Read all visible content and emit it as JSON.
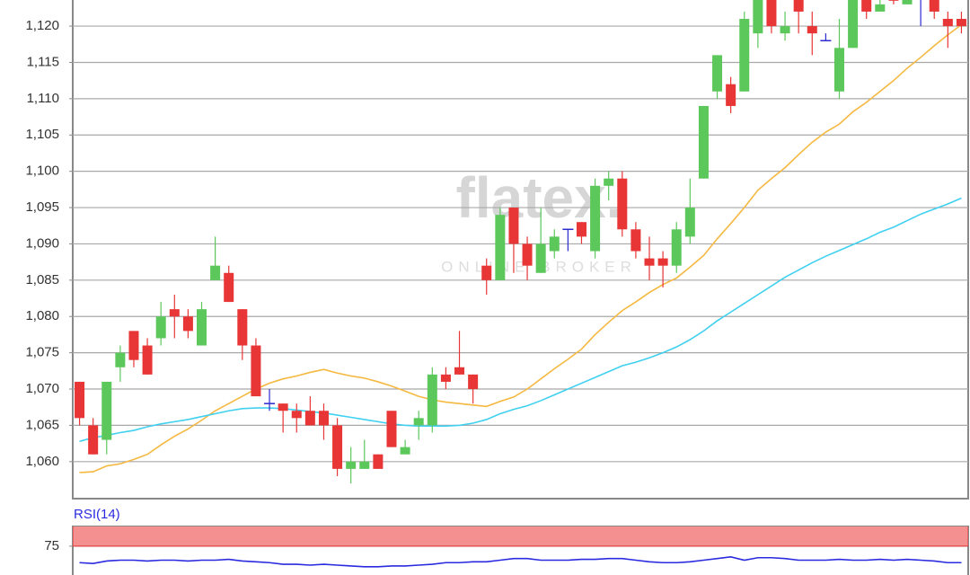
{
  "chart_data": [
    {
      "type": "candlestick",
      "watermark": [
        "flatex.",
        "ONLINE BROKER"
      ],
      "open": [
        1071,
        1065,
        1063,
        1073,
        1078,
        1076,
        1077,
        1081,
        1080,
        1076,
        1085,
        1086,
        1081,
        1076,
        1068,
        1068,
        1067,
        1067,
        1067,
        1065,
        1059,
        1059,
        1061,
        1067,
        1061,
        1065,
        1065,
        1072,
        1073,
        1072,
        1087,
        1085,
        1095,
        1090,
        1086,
        1089,
        1092,
        1093,
        1089,
        1098,
        1099,
        1092,
        1088,
        1088,
        1087,
        1091,
        1099,
        1111,
        1112,
        1111,
        1119,
        1124,
        1119,
        1124,
        1120,
        1118,
        1111,
        1117,
        1124,
        1122,
        1124,
        1123,
        1124,
        1124,
        1121,
        1121
      ],
      "high": [
        1071,
        1066,
        1071,
        1076,
        1078,
        1077,
        1082,
        1083,
        1081,
        1082,
        1091,
        1087,
        1081,
        1077,
        1070,
        1068,
        1068,
        1069,
        1068,
        1066,
        1062,
        1063,
        1061,
        1067,
        1063,
        1067,
        1073,
        1073,
        1078,
        1072,
        1088,
        1095,
        1095,
        1091,
        1095,
        1092,
        1092,
        1093,
        1099,
        1100,
        1100,
        1093,
        1091,
        1089,
        1093,
        1099,
        1109,
        1116,
        1113,
        1122,
        1124,
        1124,
        1122,
        1124,
        1122,
        1119,
        1121,
        1124,
        1124,
        1124,
        1124,
        1124,
        1124,
        1124,
        1122,
        1122
      ],
      "low": [
        1065,
        1061,
        1061,
        1071,
        1073,
        1072,
        1076,
        1077,
        1077,
        1076,
        1085,
        1082,
        1074,
        1069,
        1067,
        1064,
        1064,
        1065,
        1063,
        1058,
        1057,
        1059,
        1059,
        1062,
        1061,
        1063,
        1064,
        1070,
        1072,
        1068,
        1083,
        1085,
        1086,
        1085,
        1086,
        1088,
        1089,
        1090,
        1088,
        1096,
        1091,
        1088,
        1085,
        1084,
        1086,
        1090,
        1099,
        1110,
        1108,
        1111,
        1117,
        1119,
        1118,
        1119,
        1116,
        1118,
        1110,
        1117,
        1121,
        1122,
        1123,
        1123,
        1120,
        1121,
        1117,
        1119
      ],
      "close": [
        1066,
        1061,
        1071,
        1075,
        1074,
        1072,
        1080,
        1080,
        1078,
        1081,
        1087,
        1082,
        1076,
        1069,
        1068,
        1067,
        1066,
        1065,
        1065,
        1059,
        1060,
        1060,
        1059,
        1062,
        1062,
        1066,
        1072,
        1071,
        1072,
        1070,
        1085,
        1094,
        1090,
        1087,
        1090,
        1091,
        1092,
        1091,
        1098,
        1099,
        1092,
        1089,
        1087,
        1087,
        1092,
        1095,
        1109,
        1116,
        1109,
        1121,
        1124,
        1120,
        1120,
        1122,
        1119,
        1118,
        1117,
        1124,
        1122,
        1123,
        1123.5,
        1124,
        1124,
        1122,
        1120,
        1120
      ],
      "colors": {
        "up": "#5cc85c",
        "down": "#e83535",
        "doji": "#2a2ad0"
      },
      "overlays": [
        {
          "color": "#f5b840",
          "values": [
            1058.5,
            1058.6,
            1059.4,
            1059.7,
            1060.3,
            1061,
            1062.3,
            1063.5,
            1064.5,
            1065.7,
            1067,
            1068,
            1069,
            1070,
            1070.8,
            1071.4,
            1071.8,
            1072.3,
            1072.7,
            1072.2,
            1071.8,
            1071.5,
            1071,
            1070.4,
            1069.7,
            1069,
            1068.5,
            1068.2,
            1068,
            1067.8,
            1067.6,
            1068.3,
            1068.9,
            1070,
            1071.4,
            1072.8,
            1074.1,
            1075.5,
            1077.5,
            1079.2,
            1080.8,
            1082,
            1083.3,
            1084.4,
            1085.3,
            1086.8,
            1088.4,
            1090.7,
            1092.8,
            1095,
            1097.4,
            1099,
            1100.5,
            1102.3,
            1104,
            1105.4,
            1106.5,
            1108.2,
            1109.5,
            1111,
            1112.5,
            1114.2,
            1115.7,
            1117.3,
            1118.8,
            1120.2
          ]
        },
        {
          "color": "#40d0f0",
          "values": [
            1062.8,
            1063.3,
            1063.6,
            1064,
            1064.3,
            1064.8,
            1065.2,
            1065.5,
            1065.8,
            1066.2,
            1066.6,
            1067,
            1067.3,
            1067.4,
            1067.4,
            1067.3,
            1067.1,
            1066.9,
            1066.7,
            1066.4,
            1066.1,
            1065.8,
            1065.5,
            1065.2,
            1065,
            1064.9,
            1064.9,
            1064.9,
            1065,
            1065.3,
            1065.8,
            1066.6,
            1067.2,
            1067.7,
            1068.4,
            1069.2,
            1070,
            1070.8,
            1071.6,
            1072.4,
            1073.2,
            1073.7,
            1074.3,
            1075,
            1075.8,
            1076.8,
            1078,
            1079.4,
            1080.6,
            1081.8,
            1083,
            1084.2,
            1085.4,
            1086.4,
            1087.4,
            1088.3,
            1089.1,
            1089.9,
            1090.7,
            1091.6,
            1092.3,
            1093.2,
            1094.1,
            1094.8,
            1095.5,
            1096.3
          ]
        }
      ],
      "ylim": [
        1054.9,
        1123.6
      ],
      "yticks": [
        {
          "value": 1060,
          "label": "1,060"
        },
        {
          "value": 1065,
          "label": "1,065"
        },
        {
          "value": 1070,
          "label": "1,070"
        },
        {
          "value": 1075,
          "label": "1,075"
        },
        {
          "value": 1080,
          "label": "1,080"
        },
        {
          "value": 1085,
          "label": "1,085"
        },
        {
          "value": 1090,
          "label": "1,090"
        },
        {
          "value": 1095,
          "label": "1,095"
        },
        {
          "value": 1100,
          "label": "1,100"
        },
        {
          "value": 1105,
          "label": "1,105"
        },
        {
          "value": 1110,
          "label": "1,110"
        },
        {
          "value": 1115,
          "label": "1,115"
        },
        {
          "value": 1120,
          "label": "1,120"
        }
      ],
      "grid": true
    },
    {
      "type": "line",
      "title": "RSI(14)",
      "color": "#2a2ae0",
      "band": {
        "range": [
          75,
          100
        ],
        "color": "#f59090"
      },
      "values": [
        55,
        54,
        57,
        58,
        58,
        57,
        58,
        58,
        57,
        58,
        58,
        59,
        57,
        56,
        55,
        53,
        53,
        52,
        53,
        52,
        51,
        50,
        50,
        51,
        51,
        52,
        53,
        55,
        55,
        56,
        56,
        58,
        60,
        60,
        58,
        58,
        58,
        59,
        59,
        60,
        60,
        58,
        56,
        55,
        55,
        56,
        58,
        60,
        62,
        58,
        61,
        61,
        60,
        58,
        58,
        58,
        59,
        58,
        58,
        59,
        58,
        59,
        58,
        57,
        55,
        55
      ],
      "ylim": [
        40,
        100
      ],
      "yticks": [
        75
      ],
      "grid": true
    }
  ]
}
